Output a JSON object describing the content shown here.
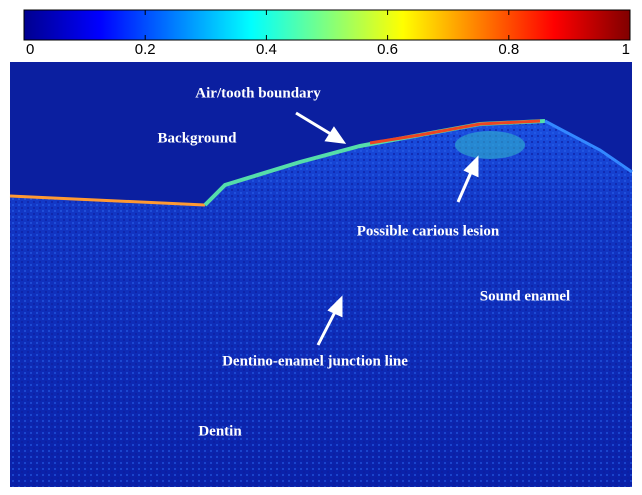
{
  "colorbar": {
    "lim": [
      0,
      1
    ],
    "ticks": [
      0,
      0.2,
      0.4,
      0.6,
      0.8,
      1
    ]
  },
  "annotations": {
    "boundary": "Air/tooth boundary",
    "background": "Background",
    "lesion": "Possible carious lesion",
    "enamel": "Sound enamel",
    "junction": "Dentino-enamel junction line",
    "dentin": "Dentin"
  }
}
